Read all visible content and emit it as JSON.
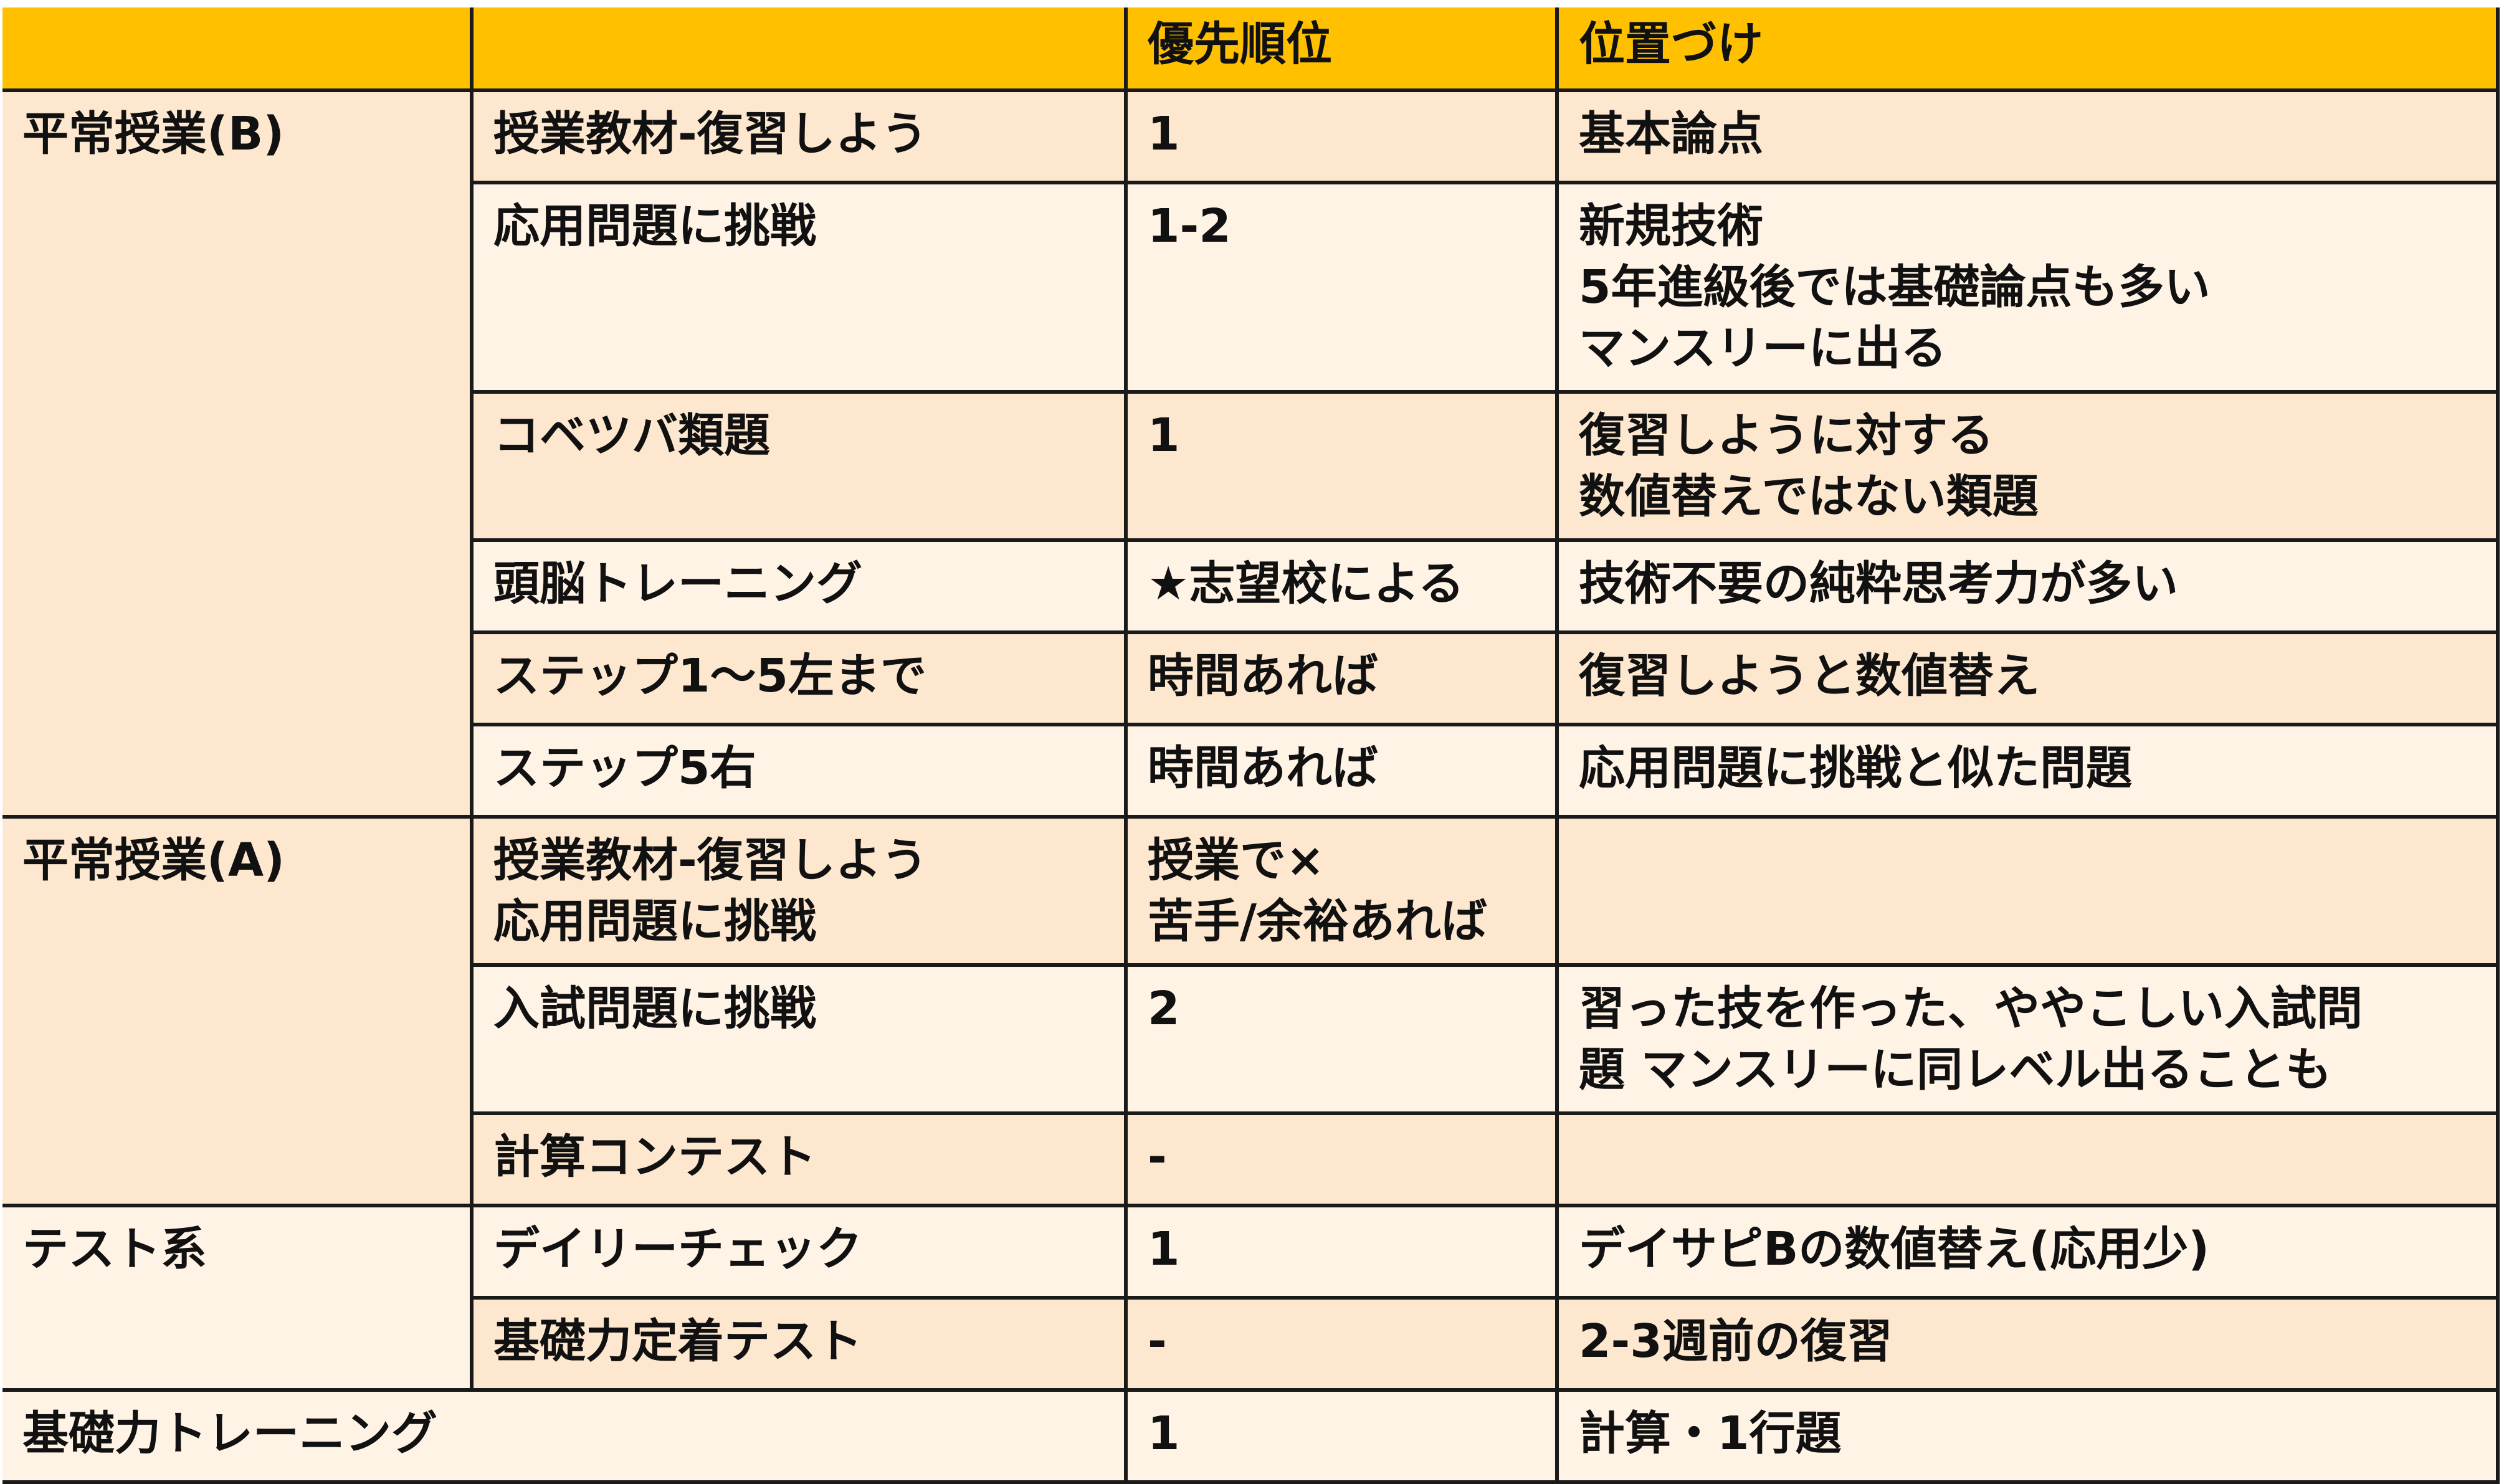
{
  "header": {
    "col1": "",
    "col2": "",
    "priority": "優先順位",
    "positioning": "位置づけ"
  },
  "colors": {
    "header": "#FFC000",
    "row_dark": "#FDE8CF",
    "row_light": "#FFF3E6",
    "border": "#1a1a1a"
  },
  "groups": {
    "b": "平常授業(B)",
    "a": "平常授業(A)",
    "test": "テスト系",
    "kiso": "基礎力トレーニング"
  },
  "rows": [
    {
      "item": "授業教材-復習しよう",
      "priority": "1",
      "positioning": "基本論点"
    },
    {
      "item": "応用問題に挑戦",
      "priority": "1-2",
      "positioning": "新規技術\n5年進級後では基礎論点も多い\nマンスリーに出る"
    },
    {
      "item": "コベツバ類題",
      "priority": "1",
      "positioning": "復習しように対する\n数値替えではない類題"
    },
    {
      "item": "頭脳トレーニング",
      "priority": "★志望校による",
      "positioning": "技術不要の純粋思考力が多い"
    },
    {
      "item": "ステップ1〜5左まで",
      "priority": "時間あれば",
      "positioning": "復習しようと数値替え"
    },
    {
      "item": "ステップ5右",
      "priority": "時間あれば",
      "positioning": "応用問題に挑戦と似た問題"
    },
    {
      "item": "授業教材-復習しよう\n応用問題に挑戦",
      "priority": "授業で×\n苦手/余裕あれば",
      "positioning": ""
    },
    {
      "item": "入試問題に挑戦",
      "priority": "2",
      "positioning": "習った技を作った、ややこしい入試問\n題 マンスリーに同レベル出ることも"
    },
    {
      "item": "計算コンテスト",
      "priority": "-",
      "positioning": ""
    },
    {
      "item": "デイリーチェック",
      "priority": "1",
      "positioning": "デイサピBの数値替え(応用少)"
    },
    {
      "item": "基礎力定着テスト",
      "priority": "-",
      "positioning": "2-3週前の復習"
    },
    {
      "item": "",
      "priority": "1",
      "positioning": "計算・1行題"
    }
  ]
}
